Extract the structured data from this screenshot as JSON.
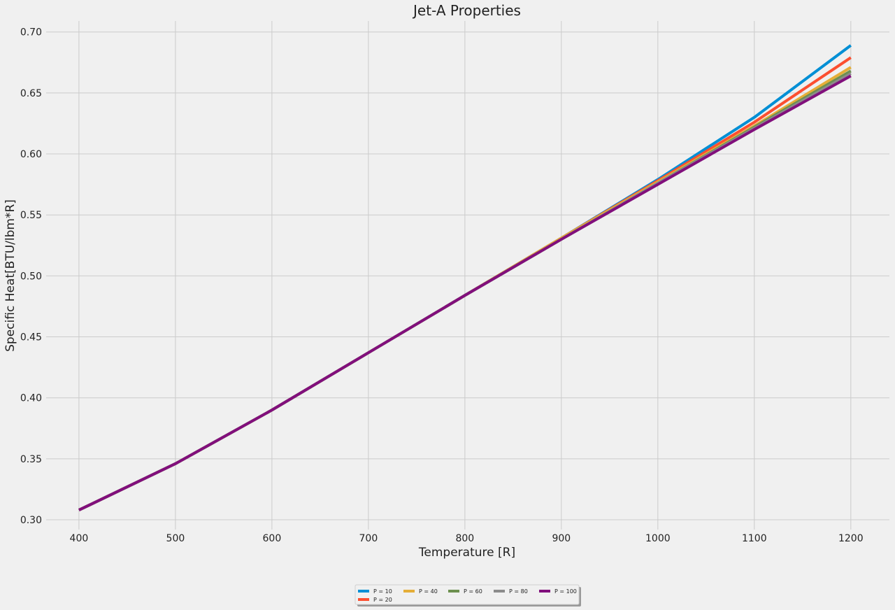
{
  "chart_data": {
    "type": "line",
    "title": "Jet-A Properties",
    "xlabel": "Temperature [R]",
    "ylabel": "Specific Heat[BTU/lbm*R]",
    "xlim": [
      366,
      1240
    ],
    "ylim": [
      0.292,
      0.709
    ],
    "xticks": [
      "400",
      "500",
      "600",
      "700",
      "800",
      "900",
      "1000",
      "1100",
      "1200"
    ],
    "yticks": [
      "0.30",
      "0.35",
      "0.40",
      "0.45",
      "0.50",
      "0.55",
      "0.60",
      "0.65",
      "0.70"
    ],
    "grid": true,
    "legend_position": "bottom-center, below plot",
    "x": [
      400,
      500,
      600,
      700,
      800,
      900,
      1000,
      1100,
      1200
    ],
    "series": [
      {
        "name": "P = 10",
        "color": "#008fd5",
        "values": [
          0.308,
          0.346,
          0.39,
          0.437,
          0.484,
          0.531,
          0.579,
          0.63,
          0.689
        ]
      },
      {
        "name": "P = 20",
        "color": "#fc4f30",
        "values": [
          0.308,
          0.346,
          0.39,
          0.437,
          0.484,
          0.531,
          0.578,
          0.626,
          0.679
        ]
      },
      {
        "name": "P = 40",
        "color": "#e5ae38",
        "values": [
          0.308,
          0.346,
          0.39,
          0.437,
          0.484,
          0.531,
          0.577,
          0.623,
          0.671
        ]
      },
      {
        "name": "P = 60",
        "color": "#6d904f",
        "values": [
          0.308,
          0.346,
          0.39,
          0.437,
          0.484,
          0.53,
          0.576,
          0.622,
          0.668
        ]
      },
      {
        "name": "P = 80",
        "color": "#8b8b8b",
        "values": [
          0.308,
          0.346,
          0.39,
          0.437,
          0.484,
          0.53,
          0.576,
          0.621,
          0.666
        ]
      },
      {
        "name": "P = 100",
        "color": "#810f7c",
        "values": [
          0.308,
          0.346,
          0.39,
          0.437,
          0.484,
          0.53,
          0.575,
          0.62,
          0.664
        ]
      }
    ]
  }
}
